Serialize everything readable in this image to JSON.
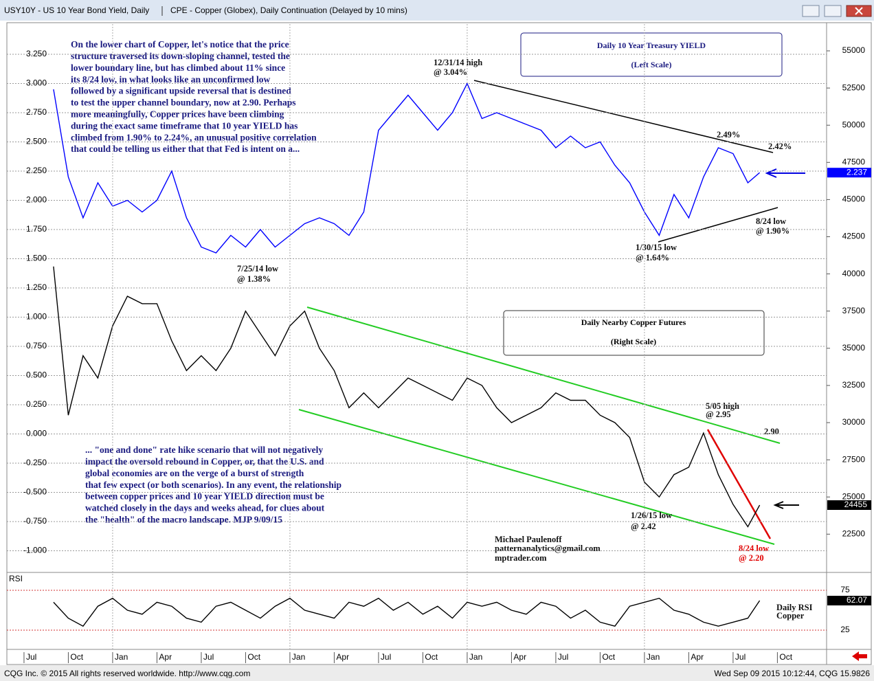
{
  "window": {
    "footer_left": "CQG Inc. © 2015 All rights reserved worldwide. http://www.cqg.com",
    "footer_right": "Wed Sep 09 2015 10:12:44, CQG 15.9826"
  },
  "chart_data": [
    {
      "type": "line",
      "xlim": [
        -1.16,
        54.33
      ],
      "x": [
        2,
        3,
        4,
        5,
        6,
        7,
        8,
        9,
        10,
        11,
        12,
        13,
        14,
        15,
        16,
        17,
        18,
        19,
        20,
        21,
        22,
        23,
        24,
        25,
        26,
        27,
        28,
        29,
        30,
        31,
        32,
        33,
        34,
        35,
        36,
        37,
        38,
        39,
        40,
        41,
        42,
        43,
        44,
        45,
        46,
        47,
        48,
        49,
        49.8
      ],
      "ylim": [
        -1.168,
        3.509
      ],
      "yticks": [
        {
          "value": 3.25,
          "label": "3.250"
        },
        {
          "value": 3.0,
          "label": "3.000"
        },
        {
          "value": 2.75,
          "label": "2.750"
        },
        {
          "value": 2.5,
          "label": "2.500"
        },
        {
          "value": 2.25,
          "label": "2.250"
        },
        {
          "value": 2.0,
          "label": "2.000"
        },
        {
          "value": 1.75,
          "label": "1.750"
        },
        {
          "value": 1.5,
          "label": "1.500"
        },
        {
          "value": 1.25,
          "label": "1.250"
        },
        {
          "value": 1.0,
          "label": "1.000"
        },
        {
          "value": 0.75,
          "label": "0.750"
        },
        {
          "value": 0.5,
          "label": "0.500"
        },
        {
          "value": 0.25,
          "label": "0.250"
        },
        {
          "value": 0.0,
          "label": "0.000"
        },
        {
          "value": -0.25,
          "label": "-0.250"
        },
        {
          "value": -0.5,
          "label": "-0.500"
        },
        {
          "value": -0.75,
          "label": "-0.750"
        },
        {
          "value": -1.0,
          "label": "-1.000"
        }
      ],
      "y2lim": [
        20065,
        56802
      ],
      "y2ticks": [
        55000,
        52500,
        50000,
        47500,
        45000,
        42500,
        40000,
        37500,
        35000,
        32500,
        30000,
        27500,
        25000,
        22500
      ],
      "grid": true,
      "series": [
        {
          "name": "USY10Y - US 10 Year Bond Yield, Daily",
          "color": "#0000ff",
          "values": [
            2.95,
            2.2,
            1.85,
            2.15,
            1.95,
            2.0,
            1.9,
            2.0,
            2.25,
            1.85,
            1.6,
            1.55,
            1.7,
            1.6,
            1.75,
            1.6,
            1.7,
            1.8,
            1.85,
            1.8,
            1.7,
            1.9,
            2.6,
            2.75,
            2.9,
            2.75,
            2.6,
            2.75,
            3.0,
            2.7,
            2.75,
            2.7,
            2.65,
            2.6,
            2.45,
            2.55,
            2.45,
            2.5,
            2.3,
            2.15,
            1.9,
            1.7,
            2.05,
            1.85,
            2.2,
            2.45,
            2.4,
            2.15,
            2.237
          ]
        },
        {
          "name": "CPE - Copper (Globex), Daily Continuation (Delayed by 10 mins)",
          "color": "#000000",
          "axis": "y2",
          "values": [
            40500,
            30500,
            34500,
            33000,
            36500,
            38500,
            38000,
            38000,
            35500,
            33500,
            34500,
            33500,
            35000,
            37500,
            36000,
            34500,
            36500,
            37500,
            35000,
            33500,
            31000,
            32000,
            31000,
            32000,
            33000,
            32500,
            32000,
            31500,
            33000,
            32500,
            31000,
            30000,
            30500,
            31000,
            32000,
            31500,
            31500,
            30500,
            30000,
            29000,
            26000,
            25000,
            26500,
            27000,
            29300,
            26500,
            24500,
            23000,
            24455
          ]
        }
      ],
      "box_yield": [
        "Daily 10 Year Treasury YIELD",
        "(Left Scale)"
      ],
      "box_copper": [
        "Daily Nearby Copper Futures",
        "(Right Scale)"
      ],
      "commentary_top": [
        "On the lower chart of Copper, let's notice that the price",
        "structure traversed its down-sloping channel, tested the",
        "lower boundary line, but has climbed about 11% since",
        "its 8/24 low, in what looks like an unconfirmed low",
        "followed by a significant upside reversal that is destined",
        "to test the upper channel boundary, now at 2.90. Perhaps",
        "more meaningfully, Copper prices have been climbing",
        "during the exact same timeframe that 10 year YIELD has",
        "climbed from 1.90% to 2.24%, an unusual positive correlation",
        "that could be telling us either that that Fed is intent on a..."
      ],
      "commentary_bottom": [
        "... \"one and done\" rate hike scenario that will not negatively",
        "impact the oversold rebound in Copper, or, that the U.S. and",
        "global economies are on the verge of a burst of strength",
        "that few expect (or both scenarios). In any event, the relationship",
        "between copper prices and 10 year YIELD direction must be",
        "watched closely in the days and weeks ahead, for clues about",
        "the \"health\" of the macro landscape. MJP 9/09/15"
      ],
      "annotations": [
        "12/31/14 high",
        "@ 3.04%",
        "7/25/14 low",
        "@ 1.38%",
        "1/30/15 low",
        "@ 1.64%",
        "2.49%",
        "2.42%",
        "8/24 low",
        "@ 1.90%",
        "5/05 high",
        "@ 2.95",
        "2.90",
        "1/26/15 low",
        "@ 2.42",
        "8/24 low",
        "@ 2.20",
        "Michael Paulenoff",
        "patternanalytics@gmail.com",
        "mptrader.com"
      ]
    },
    {
      "type": "line",
      "title": "RSI",
      "xlim": [
        -1.16,
        54.33
      ],
      "x": [
        2,
        3,
        4,
        5,
        6,
        7,
        8,
        9,
        10,
        11,
        12,
        13,
        14,
        15,
        16,
        17,
        18,
        19,
        20,
        21,
        22,
        23,
        24,
        25,
        26,
        27,
        28,
        29,
        30,
        31,
        32,
        33,
        34,
        35,
        36,
        37,
        38,
        39,
        40,
        41,
        42,
        43,
        44,
        45,
        46,
        47,
        48,
        49,
        49.8
      ],
      "xticks": [
        {
          "value": 0,
          "label": "Jul"
        },
        {
          "value": 3,
          "label": "Oct"
        },
        {
          "value": 6,
          "label": "Jan"
        },
        {
          "value": 9,
          "label": "Apr"
        },
        {
          "value": 12,
          "label": "Jul"
        },
        {
          "value": 15,
          "label": "Oct"
        },
        {
          "value": 18,
          "label": "Jan"
        },
        {
          "value": 21,
          "label": "Apr"
        },
        {
          "value": 24,
          "label": "Jul"
        },
        {
          "value": 27,
          "label": "Oct"
        },
        {
          "value": 30,
          "label": "Jan"
        },
        {
          "value": 33,
          "label": "Apr"
        },
        {
          "value": 36,
          "label": "Jul"
        },
        {
          "value": 39,
          "label": "Oct"
        },
        {
          "value": 42,
          "label": "Jan"
        },
        {
          "value": 45,
          "label": "Apr"
        },
        {
          "value": 48,
          "label": "Jul"
        },
        {
          "value": 51,
          "label": "Oct"
        }
      ],
      "ylim": [
        0.86,
        95.7
      ],
      "yticks": [
        75,
        25
      ],
      "series": [
        {
          "color": "#000000",
          "values": [
            60,
            40,
            30,
            55,
            65,
            50,
            45,
            60,
            55,
            40,
            35,
            55,
            60,
            50,
            40,
            55,
            65,
            50,
            45,
            40,
            60,
            55,
            65,
            50,
            60,
            45,
            55,
            40,
            60,
            55,
            60,
            50,
            45,
            60,
            55,
            40,
            50,
            35,
            30,
            55,
            60,
            65,
            50,
            45,
            35,
            30,
            35,
            40,
            62.07
          ]
        }
      ],
      "annotations": [
        "Daily RSI",
        "Copper"
      ]
    }
  ]
}
